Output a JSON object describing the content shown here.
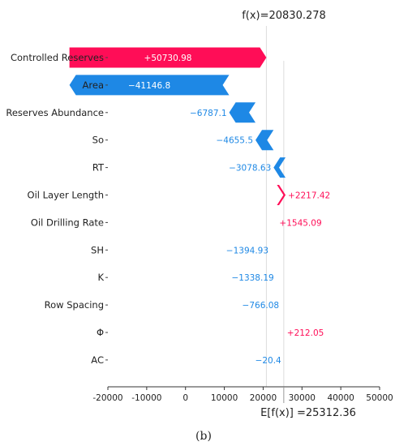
{
  "chart_data": {
    "type": "waterfall",
    "fx_label": "f(x)=20830.278",
    "efx_label": "E[f(x)] =25312.36",
    "fx": 20830.278,
    "efx": 25312.36,
    "features": [
      {
        "name": "Controlled Reserves",
        "value": 50730.98,
        "label": "+50730.98"
      },
      {
        "name": "Area",
        "value": -41146.8,
        "label": "−41146.8"
      },
      {
        "name": "Reserves Abundance",
        "value": -6787.1,
        "label": "−6787.1"
      },
      {
        "name": "So",
        "value": -4655.5,
        "label": "−4655.5"
      },
      {
        "name": "RT",
        "value": -3078.63,
        "label": "−3078.63"
      },
      {
        "name": "Oil Layer Length",
        "value": 2217.42,
        "label": "+2217.42"
      },
      {
        "name": "Oil Drilling Rate",
        "value": 1545.09,
        "label": "+1545.09"
      },
      {
        "name": "SH",
        "value": -1394.93,
        "label": "−1394.93"
      },
      {
        "name": "K",
        "value": -1338.19,
        "label": "−1338.19"
      },
      {
        "name": "Row Spacing",
        "value": -766.08,
        "label": "−766.08"
      },
      {
        "name": "Φ",
        "value": 212.05,
        "label": "+212.05"
      },
      {
        "name": "AC",
        "value": -20.4,
        "label": "−20.4"
      }
    ],
    "xlim": [
      -20000,
      50000
    ],
    "xticks": [
      -20000,
      -10000,
      0,
      10000,
      20000,
      30000,
      40000,
      50000
    ],
    "xtick_labels": [
      "-20000",
      "-10000",
      "0",
      "10000",
      "20000",
      "30000",
      "40000",
      "50000"
    ],
    "colors": {
      "positive": "#ff0d57",
      "negative": "#1e88e5"
    },
    "caption": "(b)"
  }
}
